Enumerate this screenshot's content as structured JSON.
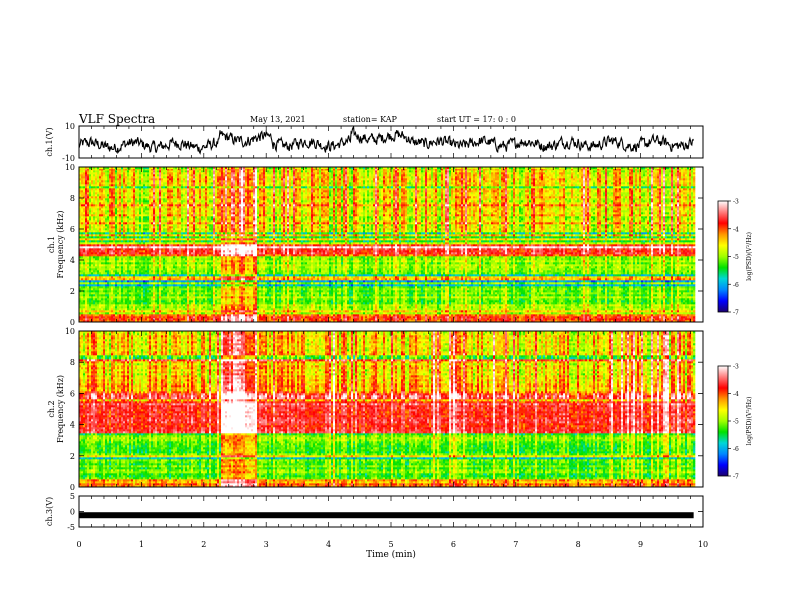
{
  "header": {
    "title": "VLF Spectra",
    "date": "May 13, 2021",
    "station": "station= KAP",
    "start": "start  UT =   17: 0  : 0"
  },
  "colors": {
    "ramp": [
      "#1c006e",
      "#0000ff",
      "#0087ff",
      "#00d7d7",
      "#00e100",
      "#a0ff00",
      "#ffff00",
      "#ff9600",
      "#ff0000",
      "#ff7d7d",
      "#ffffff"
    ],
    "trace": "#000000"
  },
  "chart_data": [
    {
      "type": "line",
      "name": "ch1-voltage",
      "ylabel": "ch.1(V)",
      "ylim": [
        -10,
        10
      ],
      "yticks": [
        "10",
        "-10"
      ],
      "xlim": [
        0,
        10
      ],
      "segments": [
        {
          "x0": 0.0,
          "x1": 2.25,
          "mean": -2
        },
        {
          "x0": 2.25,
          "x1": 3.1,
          "mean": 2
        },
        {
          "x0": 3.1,
          "x1": 4.35,
          "mean": -1
        },
        {
          "x0": 4.35,
          "x1": 5.3,
          "mean": 3
        },
        {
          "x0": 5.3,
          "x1": 5.5,
          "mean": 1
        },
        {
          "x0": 5.5,
          "x1": 9.85,
          "mean": -1
        }
      ]
    },
    {
      "type": "heatmap",
      "name": "ch1-spectrogram",
      "ylabel": "ch.1\nFrequency  (kHz)",
      "ylim": [
        0,
        10
      ],
      "yticks": [
        "0",
        "2",
        "4",
        "6",
        "8",
        "10"
      ],
      "xlim": [
        0,
        10
      ],
      "data_end_min": 9.85,
      "z_unit": "log(PSD)",
      "zlim": [
        -7,
        -3
      ],
      "zticks": [
        "-3",
        "-4",
        "-5",
        "-6",
        "-7"
      ],
      "colorbar_label": "log(PSD)(V²/Hz)",
      "bands": [
        {
          "f0": 0.0,
          "f1": 0.5,
          "level": -4.0
        },
        {
          "f0": 0.5,
          "f1": 4.2,
          "level": -5.1
        },
        {
          "f0": 4.2,
          "f1": 5.0,
          "level": -3.9
        },
        {
          "f0": 5.0,
          "f1": 6.8,
          "level": -4.7
        },
        {
          "f0": 6.8,
          "f1": 10.0,
          "level": -4.6
        }
      ],
      "event": {
        "t0": 2.25,
        "t1": 2.85,
        "boost": 0.8
      }
    },
    {
      "type": "heatmap",
      "name": "ch2-spectrogram",
      "ylabel": "ch.2\nFrequency  (kHz)",
      "ylim": [
        0,
        10
      ],
      "yticks": [
        "0",
        "2",
        "4",
        "6",
        "8",
        "10"
      ],
      "xlim": [
        0,
        10
      ],
      "data_end_min": 9.85,
      "z_unit": "log(PSD)",
      "zlim": [
        -7,
        -3
      ],
      "zticks": [
        "-3",
        "-4",
        "-5",
        "-6",
        "-7"
      ],
      "colorbar_label": "log(PSD)(V²/Hz)",
      "bands": [
        {
          "f0": 0.0,
          "f1": 0.5,
          "level": -4.2
        },
        {
          "f0": 0.5,
          "f1": 3.5,
          "level": -5.2
        },
        {
          "f0": 3.5,
          "f1": 6.0,
          "level": -3.7
        },
        {
          "f0": 6.0,
          "f1": 6.6,
          "level": -4.2
        },
        {
          "f0": 6.6,
          "f1": 10.0,
          "level": -4.5
        }
      ],
      "event": {
        "t0": 2.25,
        "t1": 2.85,
        "boost": 0.9
      }
    },
    {
      "type": "line",
      "name": "ch3-voltage",
      "ylabel": "ch.3(V)",
      "ylim": [
        -5,
        5
      ],
      "yticks": [
        "5",
        "0",
        "-5"
      ],
      "xlim": [
        0,
        10
      ],
      "xticks": [
        "0",
        "1",
        "2",
        "3",
        "4",
        "5",
        "6",
        "7",
        "8",
        "9",
        "10"
      ],
      "xlabel": "Time  (min)",
      "value": -1.2,
      "x_end": 9.85
    }
  ]
}
